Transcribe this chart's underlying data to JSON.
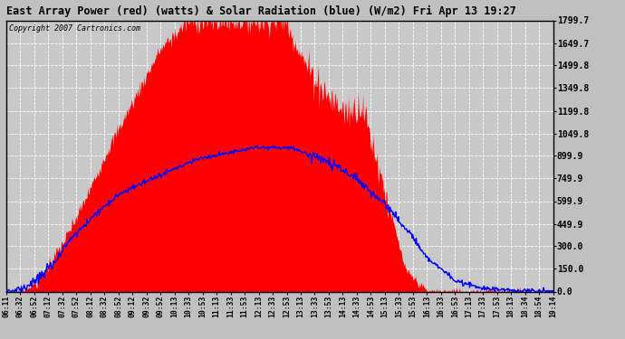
{
  "title": "East Array Power (red) (watts) & Solar Radiation (blue) (W/m2) Fri Apr 13 19:27",
  "copyright_text": "Copyright 2007 Cartronics.com",
  "yticks": [
    0.0,
    150.0,
    300.0,
    449.9,
    599.9,
    749.9,
    899.9,
    1049.8,
    1199.8,
    1349.8,
    1499.8,
    1649.7,
    1799.7
  ],
  "ymax": 1799.7,
  "ymin": 0.0,
  "fig_bg": "#c0c0c0",
  "plot_bg": "#c8c8c8",
  "grid_color": "white",
  "red_fill": "red",
  "blue_line": "blue",
  "xtick_labels": [
    "06:11",
    "06:32",
    "06:52",
    "07:12",
    "07:32",
    "07:52",
    "08:12",
    "08:32",
    "08:52",
    "09:12",
    "09:32",
    "09:52",
    "10:13",
    "10:33",
    "10:53",
    "11:13",
    "11:33",
    "11:53",
    "12:13",
    "12:33",
    "12:53",
    "13:13",
    "13:33",
    "13:53",
    "14:13",
    "14:33",
    "14:53",
    "15:13",
    "15:33",
    "15:53",
    "16:13",
    "16:33",
    "16:53",
    "17:13",
    "17:33",
    "17:53",
    "18:13",
    "18:34",
    "18:54",
    "19:14"
  ]
}
